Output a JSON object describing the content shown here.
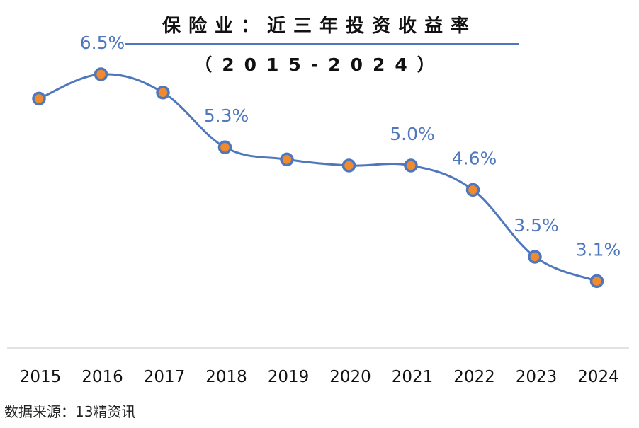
{
  "chart_data": {
    "type": "line",
    "title": "保险业：近三年投资收益率",
    "subtitle": "（2015-2024）",
    "categories": [
      "2015",
      "2016",
      "2017",
      "2018",
      "2019",
      "2020",
      "2021",
      "2022",
      "2023",
      "2024"
    ],
    "series": [
      {
        "values": [
          6.1,
          6.5,
          6.2,
          5.3,
          5.1,
          5.0,
          5.0,
          4.6,
          3.5,
          3.1
        ]
      }
    ],
    "data_labels": [
      "",
      "6.5%",
      "",
      "5.3%",
      "",
      "",
      "5.0%",
      "4.6%",
      "3.5%",
      "3.1%"
    ],
    "ylim": [
      2.0,
      7.0
    ],
    "grid": false,
    "legend": "none",
    "colors": {
      "line": "#4f77bd",
      "marker_fill": "#f08a2c",
      "label": "#4f77bd",
      "axis": "#d9d9d9"
    }
  },
  "source_text": "数据来源：13精资讯"
}
